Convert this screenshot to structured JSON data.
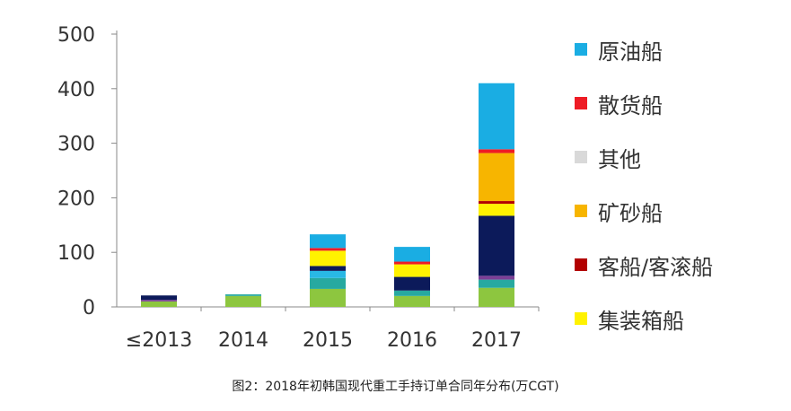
{
  "caption": "图2：2018年初韩国现代重工手持订单合同年分布(万CGT)",
  "chart_data": {
    "type": "bar",
    "stacked": true,
    "categories": [
      "≤2013",
      "2014",
      "2015",
      "2016",
      "2017"
    ],
    "ylim": [
      0,
      500
    ],
    "yticks": [
      0,
      100,
      200,
      300,
      400,
      500
    ],
    "grid": false,
    "legend_placement": "right",
    "series": [
      {
        "color": "#8dc63f",
        "values": [
          10,
          20,
          33,
          20,
          35
        ]
      },
      {
        "color": "#27a9a0",
        "values": [
          0,
          3,
          20,
          10,
          15
        ]
      },
      {
        "color": "#29b8e5",
        "values": [
          0,
          0,
          13,
          0,
          0
        ]
      },
      {
        "color": "#7b3f96",
        "values": [
          3,
          0,
          0,
          0,
          7
        ]
      },
      {
        "color": "#0c1a5a",
        "values": [
          8,
          0,
          9,
          25,
          110
        ]
      },
      {
        "name": "集装箱船",
        "color": "#fff200",
        "values": [
          0,
          0,
          28,
          23,
          22
        ]
      },
      {
        "name": "客船/客滚船",
        "color": "#b20000",
        "values": [
          0,
          0,
          0,
          0,
          5
        ]
      },
      {
        "name": "矿砂船",
        "color": "#f7b500",
        "values": [
          0,
          0,
          0,
          0,
          88
        ]
      },
      {
        "name": "其他",
        "color": "#d9d9d9",
        "values": [
          0,
          0,
          0,
          0,
          0
        ]
      },
      {
        "name": "散货船",
        "color": "#ee1c25",
        "values": [
          0,
          0,
          5,
          5,
          7
        ]
      },
      {
        "name": "原油船",
        "color": "#1aade3",
        "values": [
          0,
          0,
          25,
          27,
          121
        ]
      }
    ],
    "legend": [
      {
        "label": "原油船",
        "color": "#1aade3"
      },
      {
        "label": "散货船",
        "color": "#ee1c25"
      },
      {
        "label": "其他",
        "color": "#d9d9d9"
      },
      {
        "label": "矿砂船",
        "color": "#f7b500"
      },
      {
        "label": "客船/客滚船",
        "color": "#b20000"
      },
      {
        "label": "集装箱船",
        "color": "#fff200"
      }
    ]
  }
}
